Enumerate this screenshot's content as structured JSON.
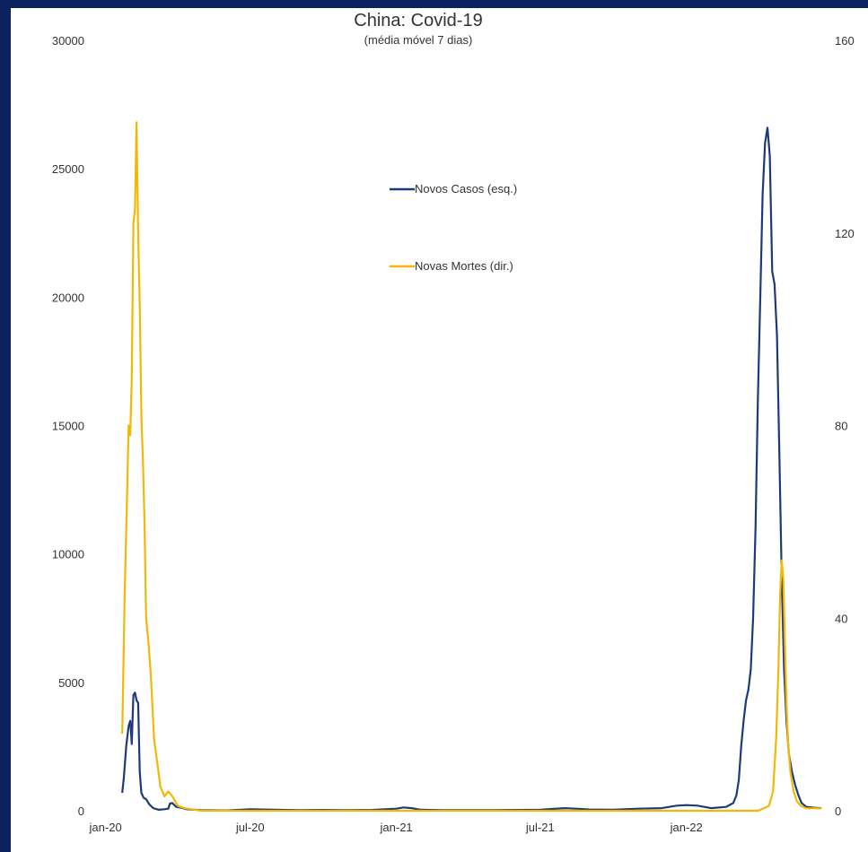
{
  "chart_data": {
    "type": "line",
    "title": "China: Covid-19",
    "subtitle": "(média móvel 7 dias)",
    "x_ticks": [
      "jan-20",
      "jul-20",
      "jan-21",
      "jul-21",
      "jan-22"
    ],
    "x_tick_dates": [
      "2020-01-01",
      "2020-07-01",
      "2021-01-01",
      "2021-07-01",
      "2022-01-01"
    ],
    "xlim": [
      "2019-12-20",
      "2022-06-30"
    ],
    "y_left": {
      "ylim": [
        0,
        30000
      ],
      "ticks": [
        "0",
        "5000",
        "10000",
        "15000",
        "20000",
        "25000",
        "30000"
      ]
    },
    "y_right": {
      "ylim": [
        0,
        160
      ],
      "ticks": [
        "0",
        "40",
        "80",
        "120",
        "160"
      ]
    },
    "legend_placement": "top-center",
    "grid": false,
    "series": [
      {
        "name": "Novos Casos (esq.)",
        "axis": "left",
        "color": "#1f3a7a",
        "points": [
          [
            "2020-01-22",
            700
          ],
          [
            "2020-01-24",
            1300
          ],
          [
            "2020-01-27",
            2500
          ],
          [
            "2020-01-30",
            3300
          ],
          [
            "2020-02-01",
            3500
          ],
          [
            "2020-02-03",
            2600
          ],
          [
            "2020-02-05",
            4500
          ],
          [
            "2020-02-07",
            4600
          ],
          [
            "2020-02-09",
            4300
          ],
          [
            "2020-02-11",
            4200
          ],
          [
            "2020-02-13",
            1500
          ],
          [
            "2020-02-15",
            700
          ],
          [
            "2020-02-18",
            500
          ],
          [
            "2020-02-21",
            450
          ],
          [
            "2020-02-25",
            250
          ],
          [
            "2020-03-01",
            100
          ],
          [
            "2020-03-08",
            40
          ],
          [
            "2020-03-15",
            60
          ],
          [
            "2020-03-20",
            80
          ],
          [
            "2020-03-22",
            280
          ],
          [
            "2020-03-25",
            300
          ],
          [
            "2020-03-30",
            150
          ],
          [
            "2020-04-05",
            120
          ],
          [
            "2020-04-12",
            60
          ],
          [
            "2020-05-01",
            20
          ],
          [
            "2020-06-01",
            10
          ],
          [
            "2020-07-01",
            60
          ],
          [
            "2020-08-01",
            40
          ],
          [
            "2020-09-01",
            20
          ],
          [
            "2020-10-01",
            30
          ],
          [
            "2020-11-01",
            20
          ],
          [
            "2020-12-01",
            30
          ],
          [
            "2021-01-01",
            80
          ],
          [
            "2021-01-10",
            130
          ],
          [
            "2021-01-20",
            100
          ],
          [
            "2021-02-01",
            40
          ],
          [
            "2021-03-01",
            20
          ],
          [
            "2021-04-01",
            20
          ],
          [
            "2021-05-01",
            20
          ],
          [
            "2021-06-01",
            30
          ],
          [
            "2021-07-01",
            40
          ],
          [
            "2021-08-01",
            100
          ],
          [
            "2021-08-15",
            80
          ],
          [
            "2021-09-01",
            50
          ],
          [
            "2021-10-01",
            40
          ],
          [
            "2021-11-01",
            80
          ],
          [
            "2021-12-01",
            100
          ],
          [
            "2021-12-20",
            200
          ],
          [
            "2022-01-01",
            220
          ],
          [
            "2022-01-15",
            200
          ],
          [
            "2022-02-01",
            100
          ],
          [
            "2022-02-20",
            150
          ],
          [
            "2022-03-01",
            300
          ],
          [
            "2022-03-05",
            600
          ],
          [
            "2022-03-08",
            1200
          ],
          [
            "2022-03-11",
            2500
          ],
          [
            "2022-03-14",
            3500
          ],
          [
            "2022-03-17",
            4300
          ],
          [
            "2022-03-20",
            4700
          ],
          [
            "2022-03-23",
            5500
          ],
          [
            "2022-03-26",
            7500
          ],
          [
            "2022-03-29",
            11000
          ],
          [
            "2022-04-01",
            16000
          ],
          [
            "2022-04-04",
            20000
          ],
          [
            "2022-04-07",
            24000
          ],
          [
            "2022-04-10",
            26000
          ],
          [
            "2022-04-13",
            26600
          ],
          [
            "2022-04-16",
            25500
          ],
          [
            "2022-04-19",
            21000
          ],
          [
            "2022-04-22",
            20500
          ],
          [
            "2022-04-25",
            18500
          ],
          [
            "2022-04-28",
            14000
          ],
          [
            "2022-05-01",
            9000
          ],
          [
            "2022-05-04",
            5500
          ],
          [
            "2022-05-07",
            3500
          ],
          [
            "2022-05-10",
            2200
          ],
          [
            "2022-05-14",
            1500
          ],
          [
            "2022-05-18",
            1000
          ],
          [
            "2022-05-22",
            600
          ],
          [
            "2022-05-26",
            300
          ],
          [
            "2022-06-01",
            150
          ],
          [
            "2022-06-10",
            120
          ],
          [
            "2022-06-20",
            100
          ]
        ]
      },
      {
        "name": "Novas Mortes (dir.)",
        "axis": "right",
        "color": "#f2b807",
        "points": [
          [
            "2020-01-22",
            16
          ],
          [
            "2020-01-25",
            45
          ],
          [
            "2020-01-28",
            65
          ],
          [
            "2020-01-30",
            80
          ],
          [
            "2020-02-01",
            78
          ],
          [
            "2020-02-03",
            90
          ],
          [
            "2020-02-05",
            122
          ],
          [
            "2020-02-07",
            125
          ],
          [
            "2020-02-09",
            143
          ],
          [
            "2020-02-11",
            120
          ],
          [
            "2020-02-13",
            105
          ],
          [
            "2020-02-15",
            82
          ],
          [
            "2020-02-17",
            73
          ],
          [
            "2020-02-19",
            60
          ],
          [
            "2020-02-21",
            40
          ],
          [
            "2020-02-24",
            35
          ],
          [
            "2020-02-27",
            28
          ],
          [
            "2020-03-02",
            15
          ],
          [
            "2020-03-06",
            10
          ],
          [
            "2020-03-10",
            5
          ],
          [
            "2020-03-15",
            3
          ],
          [
            "2020-03-20",
            4
          ],
          [
            "2020-03-25",
            3
          ],
          [
            "2020-04-01",
            1
          ],
          [
            "2020-04-10",
            0.5
          ],
          [
            "2020-05-01",
            0
          ],
          [
            "2020-07-01",
            0
          ],
          [
            "2021-01-01",
            0
          ],
          [
            "2021-07-01",
            0
          ],
          [
            "2022-01-01",
            0
          ],
          [
            "2022-04-01",
            0
          ],
          [
            "2022-04-15",
            1
          ],
          [
            "2022-04-20",
            4
          ],
          [
            "2022-04-24",
            15
          ],
          [
            "2022-04-27",
            30
          ],
          [
            "2022-04-29",
            45
          ],
          [
            "2022-05-01",
            52
          ],
          [
            "2022-05-03",
            48
          ],
          [
            "2022-05-05",
            35
          ],
          [
            "2022-05-07",
            22
          ],
          [
            "2022-05-09",
            14
          ],
          [
            "2022-05-12",
            8
          ],
          [
            "2022-05-16",
            4
          ],
          [
            "2022-05-20",
            2
          ],
          [
            "2022-05-25",
            1
          ],
          [
            "2022-06-01",
            0.5
          ],
          [
            "2022-06-20",
            0.5
          ]
        ]
      }
    ]
  }
}
